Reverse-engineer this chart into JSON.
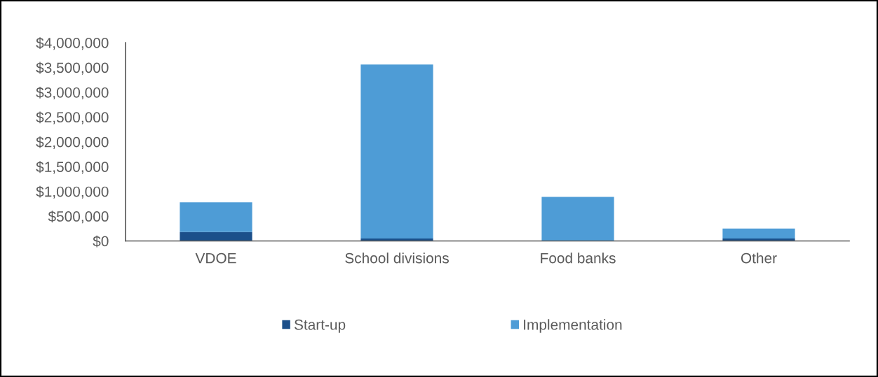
{
  "chart_data": {
    "type": "bar",
    "stacked": true,
    "categories": [
      "VDOE",
      "School divisions",
      "Food banks",
      "Other"
    ],
    "series": [
      {
        "name": "Start-up",
        "color": "#1b4f8a",
        "values": [
          180000,
          50000,
          0,
          50000
        ]
      },
      {
        "name": "Implementation",
        "color": "#4e9cd6",
        "values": [
          600000,
          3510000,
          890000,
          200000
        ]
      }
    ],
    "ylim": [
      0,
      4000000
    ],
    "yticks": [
      {
        "value": 0,
        "label": "$0"
      },
      {
        "value": 500000,
        "label": "$500,000"
      },
      {
        "value": 1000000,
        "label": "$1,000,000"
      },
      {
        "value": 1500000,
        "label": "$1,500,000"
      },
      {
        "value": 2000000,
        "label": "$2,000,000"
      },
      {
        "value": 2500000,
        "label": "$2,500,000"
      },
      {
        "value": 3000000,
        "label": "$3,000,000"
      },
      {
        "value": 3500000,
        "label": "$3,500,000"
      },
      {
        "value": 4000000,
        "label": "$4,000,000"
      }
    ],
    "legend": "bottom"
  }
}
